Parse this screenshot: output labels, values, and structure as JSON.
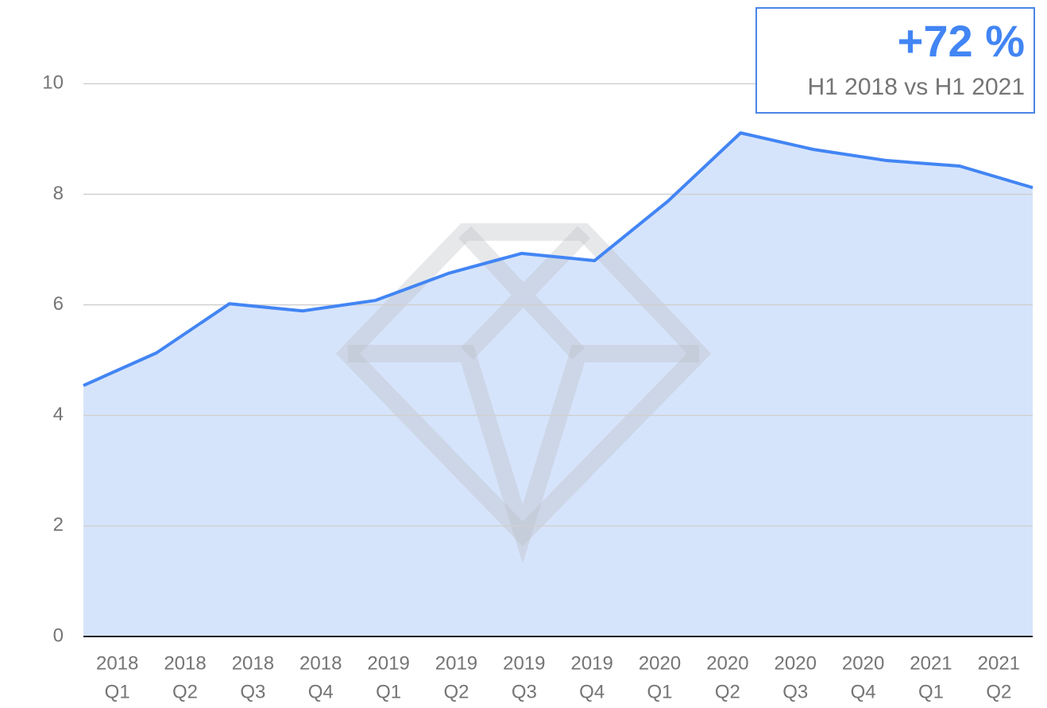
{
  "chart_data": {
    "type": "area",
    "categories": [
      [
        "2018",
        "Q1"
      ],
      [
        "2018",
        "Q2"
      ],
      [
        "2018",
        "Q3"
      ],
      [
        "2018",
        "Q4"
      ],
      [
        "2019",
        "Q1"
      ],
      [
        "2019",
        "Q2"
      ],
      [
        "2019",
        "Q3"
      ],
      [
        "2019",
        "Q4"
      ],
      [
        "2020",
        "Q1"
      ],
      [
        "2020",
        "Q2"
      ],
      [
        "2020",
        "Q3"
      ],
      [
        "2020",
        "Q4"
      ],
      [
        "2021",
        "Q1"
      ],
      [
        "2021",
        "Q2"
      ]
    ],
    "values": [
      4.54,
      5.13,
      6.02,
      5.89,
      6.08,
      6.57,
      6.93,
      6.8,
      7.87,
      9.11,
      8.81,
      8.61,
      8.51,
      8.12
    ],
    "color": "#4285f4",
    "fill": "#d6e4fb",
    "ylim": [
      0,
      11.5
    ],
    "yticks": [
      0,
      2,
      4,
      6,
      8,
      10
    ],
    "grid": true,
    "annotation": {
      "headline": "+72 %",
      "text": "H1 2018 vs H1 2021"
    }
  }
}
